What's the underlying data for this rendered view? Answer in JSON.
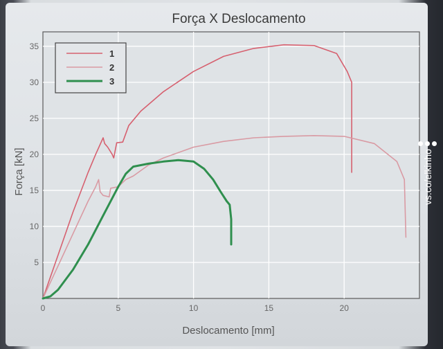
{
  "watermark": "vs.co/elkinho",
  "chart_data": {
    "type": "line",
    "title": "Força X Deslocamento",
    "xlabel": "Deslocamento [mm]",
    "ylabel": "Força [kN]",
    "xlim": [
      0,
      25
    ],
    "ylim": [
      0,
      37
    ],
    "xticks": [
      0,
      5,
      10,
      15,
      20
    ],
    "yticks": [
      5,
      10,
      15,
      20,
      25,
      30,
      35
    ],
    "grid": true,
    "legend": "top-left",
    "colors": {
      "1": "#d6606f",
      "2": "#d99aa3",
      "3": "#2f8f4e",
      "grid": "#ffffff",
      "axis": "#555555",
      "plot_bg": "#dfe3e6"
    },
    "series": [
      {
        "name": "1",
        "x": [
          0,
          0.5,
          1,
          2,
          3,
          3.5,
          4.0,
          4.1,
          4.3,
          4.6,
          4.7,
          4.9,
          5.3,
          5.7,
          6.5,
          8,
          10,
          12,
          14,
          16,
          18,
          19.5,
          20.2,
          20.5,
          20.5
        ],
        "y": [
          0,
          3,
          6,
          12,
          17.5,
          20,
          22.3,
          21.5,
          21,
          20,
          19.5,
          21.6,
          21.7,
          24,
          26,
          28.7,
          31.5,
          33.6,
          34.7,
          35.2,
          35.1,
          34,
          31.5,
          30,
          17.5
        ]
      },
      {
        "name": "2",
        "x": [
          0,
          1,
          2,
          3,
          3.5,
          3.7,
          3.8,
          4.0,
          4.4,
          4.5,
          5,
          5.5,
          6,
          7,
          8,
          10,
          12,
          14,
          16,
          18,
          20,
          22,
          23.5,
          24,
          24.1
        ],
        "y": [
          0,
          4.5,
          9,
          13.5,
          15.5,
          16.5,
          14.8,
          14.3,
          14.1,
          15.3,
          15.5,
          16.5,
          17,
          18.5,
          19.5,
          21,
          21.8,
          22.3,
          22.5,
          22.6,
          22.5,
          21.5,
          19,
          16.5,
          8.5
        ]
      },
      {
        "name": "3",
        "x": [
          0,
          0.5,
          1,
          2,
          3,
          4,
          5,
          5.5,
          6,
          7,
          8,
          9,
          10,
          10.7,
          11.3,
          11.8,
          12.2,
          12.4,
          12.5,
          12.5
        ],
        "y": [
          0,
          0.3,
          1.2,
          4,
          7.5,
          11.5,
          15.5,
          17.3,
          18.3,
          18.7,
          19,
          19.2,
          19,
          18,
          16.5,
          14.8,
          13.5,
          13,
          11,
          7.5
        ]
      }
    ]
  }
}
